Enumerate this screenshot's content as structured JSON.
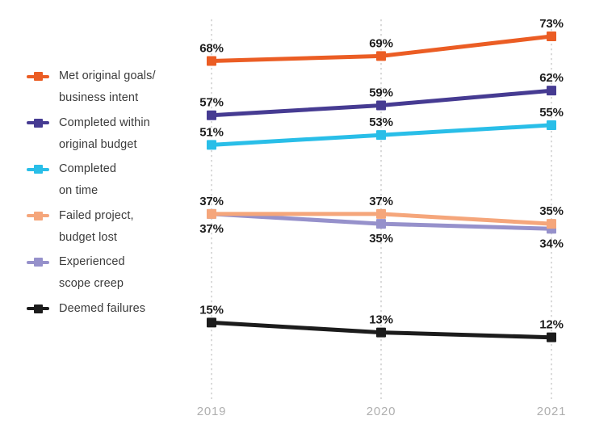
{
  "chart_data": {
    "type": "line",
    "title": "",
    "xlabel": "",
    "ylabel": "",
    "value_unit": "%",
    "categories": [
      "2019",
      "2020",
      "2021"
    ],
    "ylim": [
      0,
      80
    ],
    "grid": "vertical-dashed",
    "legend_position": "left",
    "series": [
      {
        "name": "Met original goals/ business intent",
        "color": "#EB5D24",
        "values": [
          68,
          69,
          73
        ],
        "labels": [
          "68%",
          "69%",
          "73%"
        ],
        "label_side": "above"
      },
      {
        "name": "Completed within original budget",
        "color": "#463B92",
        "values": [
          57,
          59,
          62
        ],
        "labels": [
          "57%",
          "59%",
          "62%"
        ],
        "label_side": "above"
      },
      {
        "name": "Completed on time",
        "color": "#29BEE8",
        "values": [
          51,
          53,
          55
        ],
        "labels": [
          "51%",
          "53%",
          "55%"
        ],
        "label_side": "above"
      },
      {
        "name": "Failed project, budget lost",
        "color": "#F5A67B",
        "values": [
          37,
          37,
          35
        ],
        "labels": [
          "37%",
          "37%",
          "35%"
        ],
        "label_side": "above"
      },
      {
        "name": "Experienced scope creep",
        "color": "#9691CB",
        "values": [
          37,
          35,
          34
        ],
        "labels": [
          "37%",
          "35%",
          "34%"
        ],
        "label_side": "below"
      },
      {
        "name": "Deemed failures",
        "color": "#1C1C1C",
        "values": [
          15,
          13,
          12
        ],
        "labels": [
          "15%",
          "13%",
          "12%"
        ],
        "label_side": "above"
      }
    ],
    "legend": [
      {
        "lines": [
          "Met original goals/",
          "business intent"
        ],
        "color": "#EB5D24"
      },
      {
        "lines": [
          "Completed within",
          "original budget"
        ],
        "color": "#463B92"
      },
      {
        "lines": [
          "Completed",
          "on time"
        ],
        "color": "#29BEE8"
      },
      {
        "lines": [
          "Failed project,",
          "budget lost"
        ],
        "color": "#F5A67B"
      },
      {
        "lines": [
          "Experienced",
          "scope creep"
        ],
        "color": "#9691CB"
      },
      {
        "lines": [
          "Deemed failures"
        ],
        "color": "#1C1C1C"
      }
    ]
  },
  "colors": {
    "background": "#FFFFFF",
    "gridline": "#C5C5C5",
    "data_label": "#1D1D1D",
    "axis_label": "#AFAFAF",
    "legend_text": "#3B3B3B"
  }
}
